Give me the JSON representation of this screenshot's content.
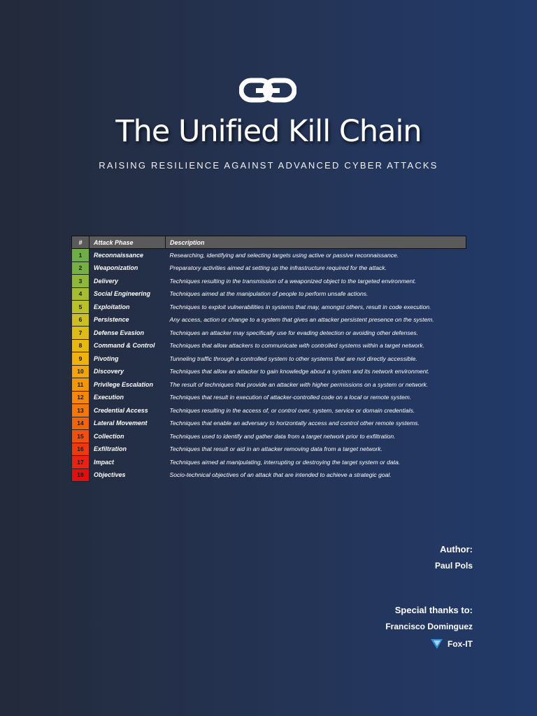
{
  "header": {
    "title": "The Unified Kill Chain",
    "subtitle": "RAISING RESILIENCE AGAINST ADVANCED CYBER ATTACKS",
    "logo_icon": "chain-link-icon"
  },
  "table": {
    "columns": [
      "#",
      "Attack Phase",
      "Description"
    ],
    "rows": [
      {
        "num": "1",
        "phase": "Reconnaissance",
        "desc": "Researching, identifying and selecting targets using active or passive reconnaissance.",
        "color": "#6fae45"
      },
      {
        "num": "2",
        "phase": "Weaponization",
        "desc": "Preparatory activities aimed at setting up the infrastructure required for the attack.",
        "color": "#76b043"
      },
      {
        "num": "3",
        "phase": "Delivery",
        "desc": "Techniques resulting in the transmission of a weaponized object to the targeted environment.",
        "color": "#8fb73a"
      },
      {
        "num": "4",
        "phase": "Social Engineering",
        "desc": "Techniques aimed at the manipulation of people to perform unsafe actions.",
        "color": "#a6bd32"
      },
      {
        "num": "5",
        "phase": "Exploitation",
        "desc": "Techniques to exploit vulnerabilities in systems that may, amongst others, result in code execution.",
        "color": "#b9c12a"
      },
      {
        "num": "6",
        "phase": "Persistence",
        "desc": "Any access, action or change to a system that gives an attacker persistent presence on the system.",
        "color": "#cdbf23"
      },
      {
        "num": "7",
        "phase": "Defense Evasion",
        "desc": "Techniques an attacker may specifically use for evading detection or avoiding other defenses.",
        "color": "#dcbc1c"
      },
      {
        "num": "8",
        "phase": "Command & Control",
        "desc": "Techniques that allow attackers to communicate with controlled systems within a target network.",
        "color": "#e8b714"
      },
      {
        "num": "9",
        "phase": "Pivoting",
        "desc": "Tunneling traffic through a controlled system to other systems that are not directly accessible.",
        "color": "#f0b00e"
      },
      {
        "num": "10",
        "phase": "Discovery",
        "desc": "Techniques that allow an attacker to gain knowledge about a system and its network environment.",
        "color": "#f3a30c"
      },
      {
        "num": "11",
        "phase": "Privilege Escalation",
        "desc": "The result of techniques that provide an attacker with higher permissions on a system or network.",
        "color": "#f5950b"
      },
      {
        "num": "12",
        "phase": "Execution",
        "desc": "Techniques that result in execution of attacker-controlled code on a local or remote system.",
        "color": "#f6860b"
      },
      {
        "num": "13",
        "phase": "Credential Access",
        "desc": "Techniques resulting in the access of, or control over, system, service or domain credentials.",
        "color": "#f4760c"
      },
      {
        "num": "14",
        "phase": "Lateral Movement",
        "desc": "Techniques that enable an adversary to horizontally access and control other remote systems.",
        "color": "#f1640e"
      },
      {
        "num": "15",
        "phase": "Collection",
        "desc": "Techniques used to identify and gather data from a target network prior to exfiltration.",
        "color": "#ee5010"
      },
      {
        "num": "16",
        "phase": "Exfiltration",
        "desc": "Techniques that result or aid in an attacker removing data from a target network.",
        "color": "#ea3a12"
      },
      {
        "num": "17",
        "phase": "Impact",
        "desc": "Techniques aimed at manipulating, interrupting or destroying the target system or data.",
        "color": "#e62414"
      },
      {
        "num": "18",
        "phase": "Objectives",
        "desc": "Socio-technical objectives of an attack that are intended to achieve a strategic goal.",
        "color": "#e01010"
      }
    ]
  },
  "credits": {
    "author_label": "Author:",
    "author_name": "Paul Pols",
    "thanks_label": "Special thanks to:",
    "thanks_name": "Francisco Dominguez",
    "thanks_org": "Fox-IT",
    "org_icon": "fox-it-logo-icon"
  }
}
